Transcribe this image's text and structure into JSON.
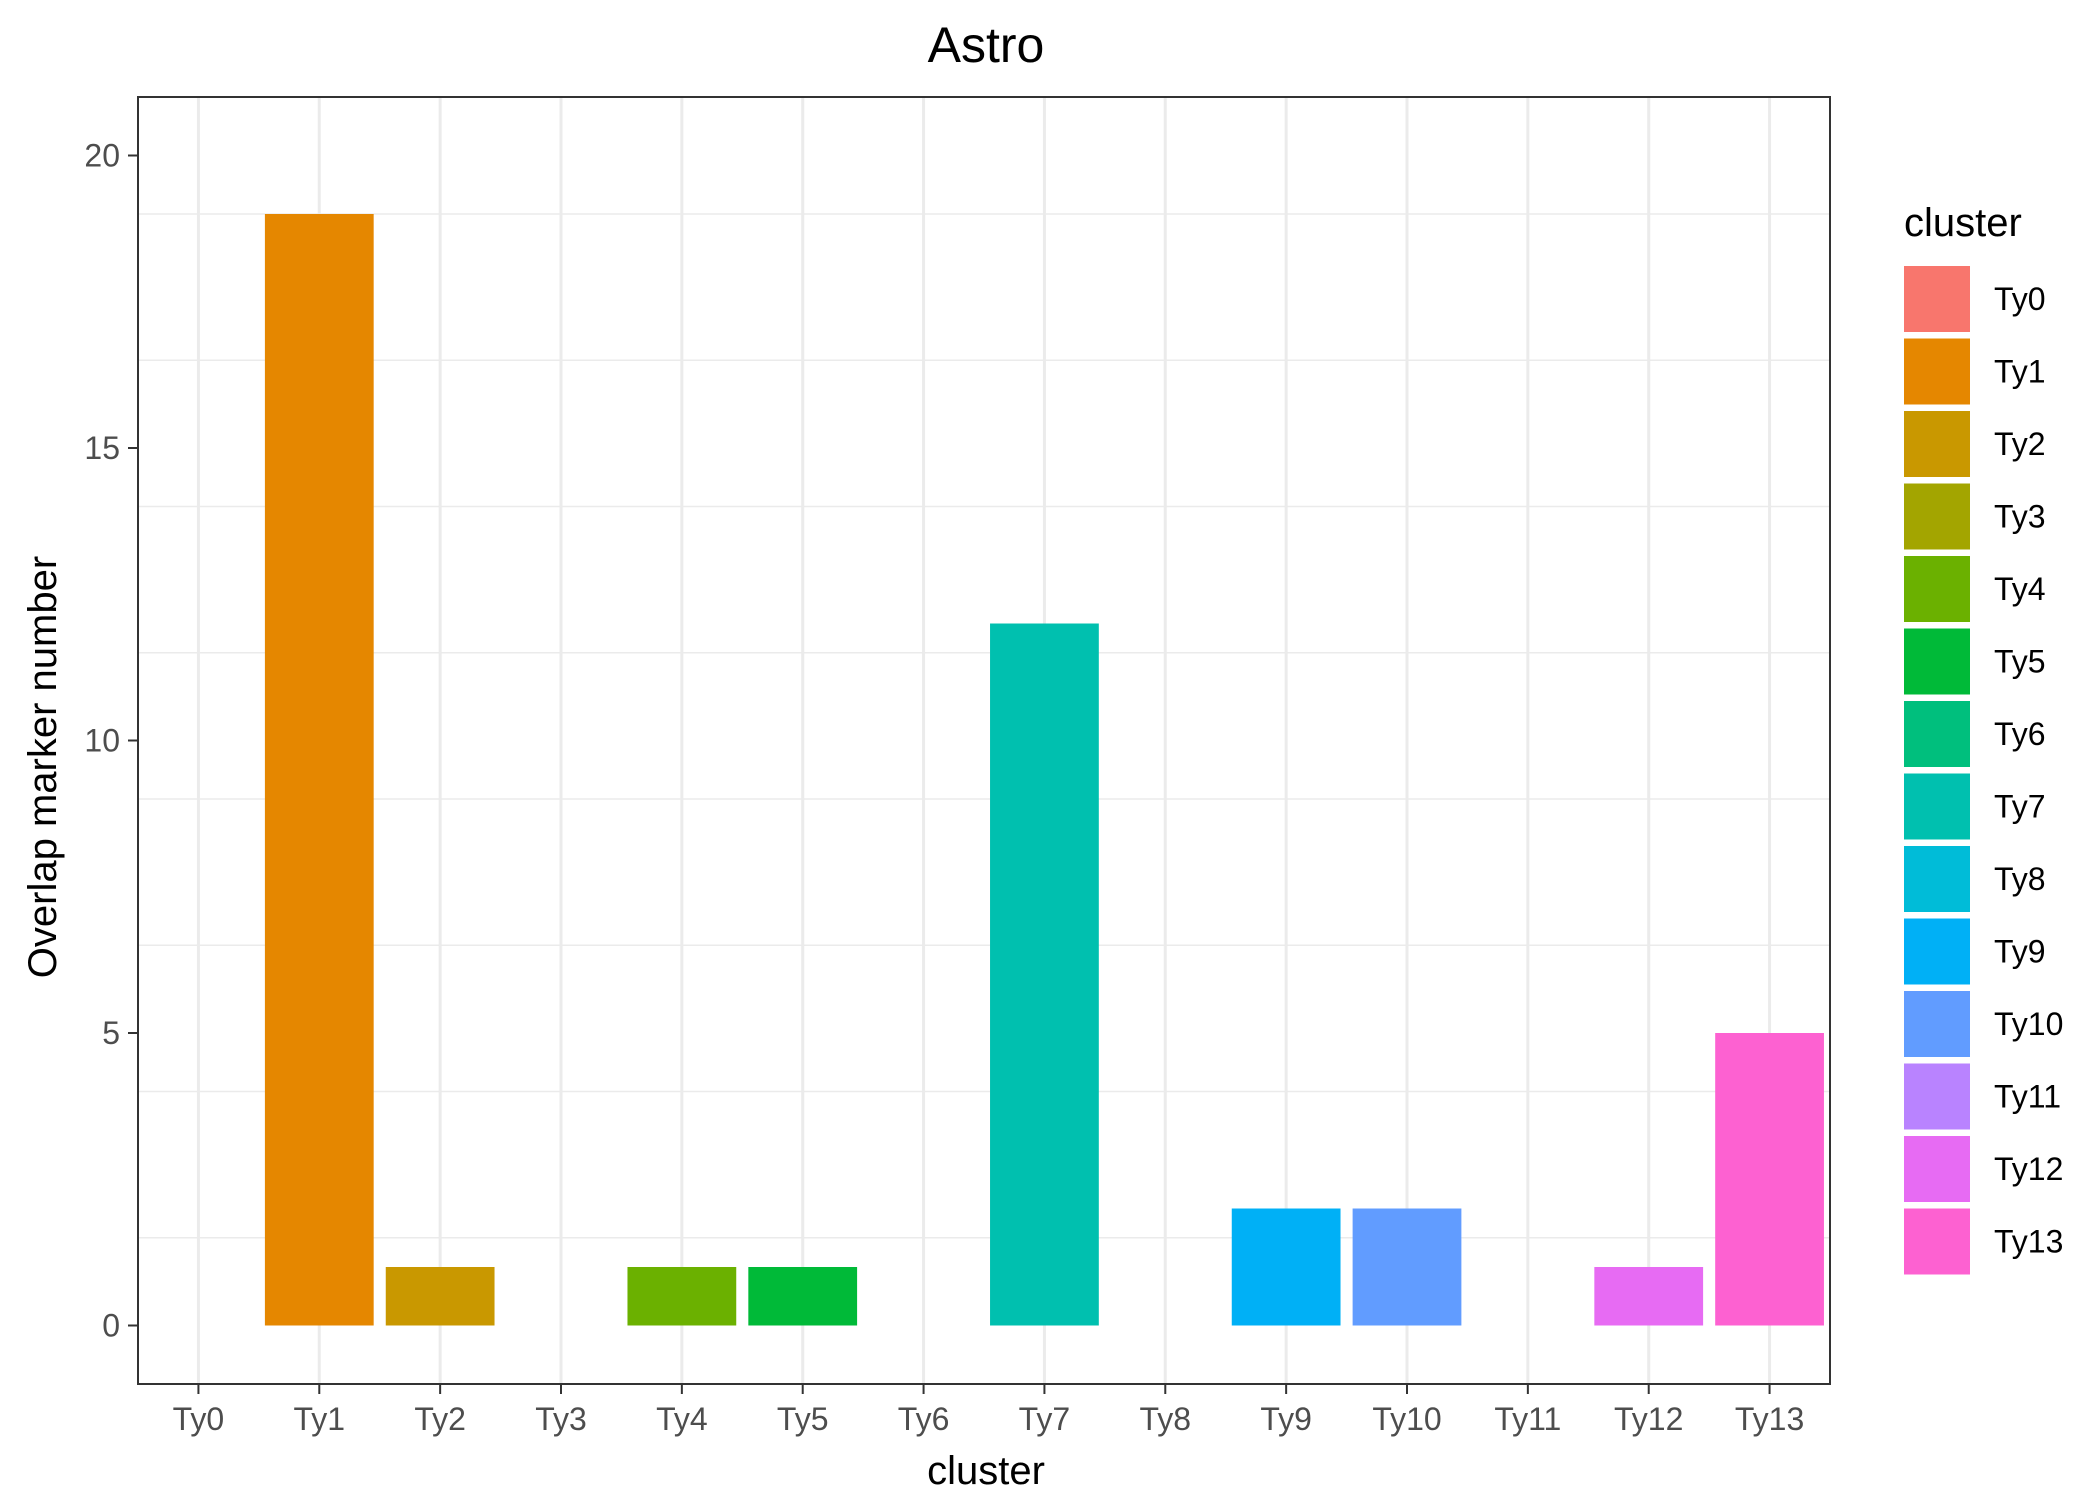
{
  "chart_data": {
    "type": "bar",
    "title": "Astro",
    "xlabel": "cluster",
    "ylabel": "Overlap marker number",
    "categories": [
      "Ty0",
      "Ty1",
      "Ty2",
      "Ty3",
      "Ty4",
      "Ty5",
      "Ty6",
      "Ty7",
      "Ty8",
      "Ty9",
      "Ty10",
      "Ty11",
      "Ty12",
      "Ty13"
    ],
    "values": [
      0,
      19,
      1,
      0,
      1,
      1,
      0,
      12,
      0,
      2,
      2,
      0,
      1,
      5
    ],
    "colors": [
      "#F8766D",
      "#E58700",
      "#C99800",
      "#A3A500",
      "#6BB100",
      "#00BA38",
      "#00BF7D",
      "#00C0AF",
      "#00BCD8",
      "#00B0F6",
      "#619CFF",
      "#B983FF",
      "#E76BF3",
      "#FD61D1"
    ],
    "ylim": [
      -1,
      21
    ],
    "yticks": [
      0,
      5,
      10,
      15,
      20
    ],
    "grid": true,
    "legend": {
      "title": "cluster",
      "position": "right",
      "labels": [
        "Ty0",
        "Ty1",
        "Ty2",
        "Ty3",
        "Ty4",
        "Ty5",
        "Ty6",
        "Ty7",
        "Ty8",
        "Ty9",
        "Ty10",
        "Ty11",
        "Ty12",
        "Ty13"
      ]
    }
  }
}
